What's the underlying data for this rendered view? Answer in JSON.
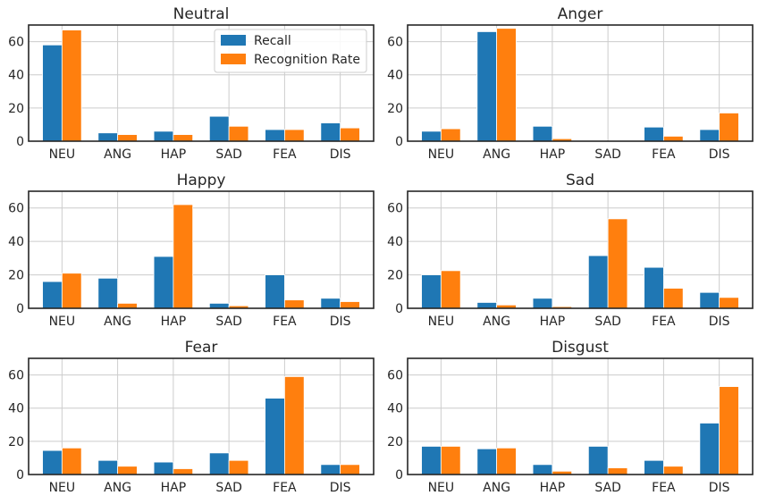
{
  "legend": {
    "items": [
      {
        "label": "Recall",
        "color": "#1f77b4"
      },
      {
        "label": "Recognition Rate",
        "color": "#ff7f0e"
      }
    ],
    "placement": "top-right of first panel"
  },
  "chart_data": [
    {
      "type": "bar",
      "title": "Neutral",
      "categories": [
        "NEU",
        "ANG",
        "HAP",
        "SAD",
        "FEA",
        "DIS"
      ],
      "series": [
        {
          "name": "Recall",
          "color": "#1f77b4",
          "values": [
            58,
            5,
            6,
            15,
            7,
            11
          ]
        },
        {
          "name": "Recognition Rate",
          "color": "#ff7f0e",
          "values": [
            67,
            4,
            4,
            9,
            7,
            8
          ]
        }
      ],
      "ylim": [
        0,
        70
      ],
      "yticks": [
        0,
        20,
        40,
        60
      ],
      "grid": true,
      "legend": "top-right"
    },
    {
      "type": "bar",
      "title": "Anger",
      "categories": [
        "NEU",
        "ANG",
        "HAP",
        "SAD",
        "FEA",
        "DIS"
      ],
      "series": [
        {
          "name": "Recall",
          "color": "#1f77b4",
          "values": [
            6,
            66,
            9,
            0,
            8.5,
            7
          ]
        },
        {
          "name": "Recognition Rate",
          "color": "#ff7f0e",
          "values": [
            7.5,
            68,
            1.5,
            0,
            3,
            17
          ]
        }
      ],
      "ylim": [
        0,
        70
      ],
      "yticks": [
        0,
        20,
        40,
        60
      ],
      "grid": true
    },
    {
      "type": "bar",
      "title": "Happy",
      "categories": [
        "NEU",
        "ANG",
        "HAP",
        "SAD",
        "FEA",
        "DIS"
      ],
      "series": [
        {
          "name": "Recall",
          "color": "#1f77b4",
          "values": [
            16,
            18,
            31,
            3,
            20,
            6
          ]
        },
        {
          "name": "Recognition Rate",
          "color": "#ff7f0e",
          "values": [
            21,
            3,
            62,
            1.5,
            5,
            4
          ]
        }
      ],
      "ylim": [
        0,
        70
      ],
      "yticks": [
        0,
        20,
        40,
        60
      ],
      "grid": true
    },
    {
      "type": "bar",
      "title": "Sad",
      "categories": [
        "NEU",
        "ANG",
        "HAP",
        "SAD",
        "FEA",
        "DIS"
      ],
      "series": [
        {
          "name": "Recall",
          "color": "#1f77b4",
          "values": [
            20,
            3.5,
            6,
            31.5,
            24.5,
            9.5
          ]
        },
        {
          "name": "Recognition Rate",
          "color": "#ff7f0e",
          "values": [
            22.5,
            2,
            1,
            53.5,
            12,
            6.5
          ]
        }
      ],
      "ylim": [
        0,
        70
      ],
      "yticks": [
        0,
        20,
        40,
        60
      ],
      "grid": true
    },
    {
      "type": "bar",
      "title": "Fear",
      "categories": [
        "NEU",
        "ANG",
        "HAP",
        "SAD",
        "FEA",
        "DIS"
      ],
      "series": [
        {
          "name": "Recall",
          "color": "#1f77b4",
          "values": [
            14.5,
            8.5,
            7.5,
            13,
            46,
            6
          ]
        },
        {
          "name": "Recognition Rate",
          "color": "#ff7f0e",
          "values": [
            16,
            5,
            3.5,
            8.5,
            59,
            6
          ]
        }
      ],
      "ylim": [
        0,
        70
      ],
      "yticks": [
        0,
        20,
        40,
        60
      ],
      "grid": true
    },
    {
      "type": "bar",
      "title": "Disgust",
      "categories": [
        "NEU",
        "ANG",
        "HAP",
        "SAD",
        "FEA",
        "DIS"
      ],
      "series": [
        {
          "name": "Recall",
          "color": "#1f77b4",
          "values": [
            17,
            15.5,
            6,
            17,
            8.5,
            31
          ]
        },
        {
          "name": "Recognition Rate",
          "color": "#ff7f0e",
          "values": [
            17,
            16,
            2,
            4,
            5,
            53
          ]
        }
      ],
      "ylim": [
        0,
        70
      ],
      "yticks": [
        0,
        20,
        40,
        60
      ],
      "grid": true
    }
  ]
}
